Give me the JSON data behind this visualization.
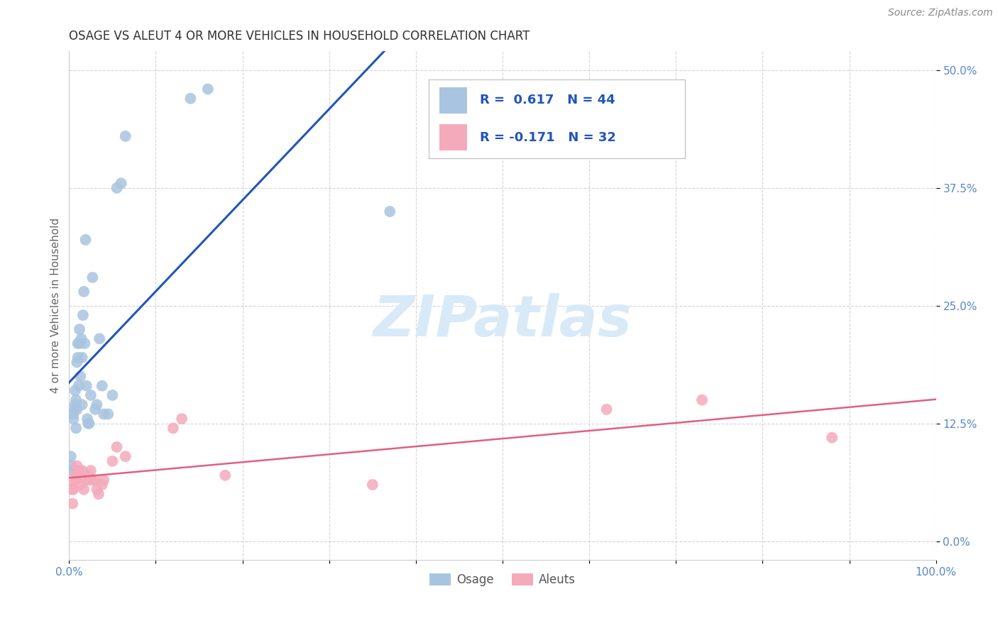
{
  "title": "OSAGE VS ALEUT 4 OR MORE VEHICLES IN HOUSEHOLD CORRELATION CHART",
  "source": "Source: ZipAtlas.com",
  "ylabel": "4 or more Vehicles in Household",
  "legend_osage": "Osage",
  "legend_aleuts": "Aleuts",
  "r_osage": 0.617,
  "n_osage": 44,
  "r_aleuts": -0.171,
  "n_aleuts": 32,
  "xlim": [
    0.0,
    1.0
  ],
  "ylim": [
    -0.02,
    0.52
  ],
  "ytick_vals": [
    0.0,
    0.125,
    0.25,
    0.375,
    0.5
  ],
  "ytick_labels": [
    "0.0%",
    "12.5%",
    "25.0%",
    "37.5%",
    "50.0%"
  ],
  "osage_color": "#a8c4e0",
  "aleuts_color": "#f4aabb",
  "osage_line_color": "#2255bb",
  "aleuts_line_color": "#e06080",
  "background_color": "#ffffff",
  "grid_color": "#cccccc",
  "title_color": "#303030",
  "axis_label_color": "#5588cc",
  "legend_text_color": "#2255bb",
  "ylabel_color": "#666666",
  "watermark_color": "#d8eaf8",
  "osage_x": [
    0.002,
    0.003,
    0.004,
    0.005,
    0.005,
    0.006,
    0.007,
    0.007,
    0.008,
    0.008,
    0.009,
    0.009,
    0.01,
    0.01,
    0.011,
    0.012,
    0.012,
    0.013,
    0.014,
    0.015,
    0.015,
    0.016,
    0.017,
    0.018,
    0.019,
    0.02,
    0.021,
    0.022,
    0.023,
    0.025,
    0.027,
    0.03,
    0.032,
    0.035,
    0.038,
    0.04,
    0.045,
    0.05,
    0.055,
    0.06,
    0.065,
    0.14,
    0.16,
    0.37
  ],
  "osage_y": [
    0.09,
    0.08,
    0.075,
    0.13,
    0.135,
    0.14,
    0.145,
    0.16,
    0.15,
    0.12,
    0.14,
    0.19,
    0.21,
    0.195,
    0.165,
    0.21,
    0.225,
    0.175,
    0.215,
    0.145,
    0.195,
    0.24,
    0.265,
    0.21,
    0.32,
    0.165,
    0.13,
    0.125,
    0.125,
    0.155,
    0.28,
    0.14,
    0.145,
    0.215,
    0.165,
    0.135,
    0.135,
    0.155,
    0.375,
    0.38,
    0.43,
    0.47,
    0.48,
    0.35
  ],
  "aleuts_x": [
    0.002,
    0.003,
    0.004,
    0.005,
    0.007,
    0.008,
    0.009,
    0.01,
    0.011,
    0.013,
    0.015,
    0.017,
    0.019,
    0.022,
    0.023,
    0.025,
    0.027,
    0.03,
    0.032,
    0.034,
    0.038,
    0.04,
    0.05,
    0.055,
    0.065,
    0.12,
    0.13,
    0.18,
    0.35,
    0.62,
    0.73,
    0.88
  ],
  "aleuts_y": [
    0.06,
    0.055,
    0.04,
    0.055,
    0.07,
    0.065,
    0.08,
    0.07,
    0.075,
    0.06,
    0.075,
    0.055,
    0.065,
    0.07,
    0.065,
    0.075,
    0.065,
    0.065,
    0.055,
    0.05,
    0.06,
    0.065,
    0.085,
    0.1,
    0.09,
    0.12,
    0.13,
    0.07,
    0.06,
    0.14,
    0.15,
    0.11
  ]
}
